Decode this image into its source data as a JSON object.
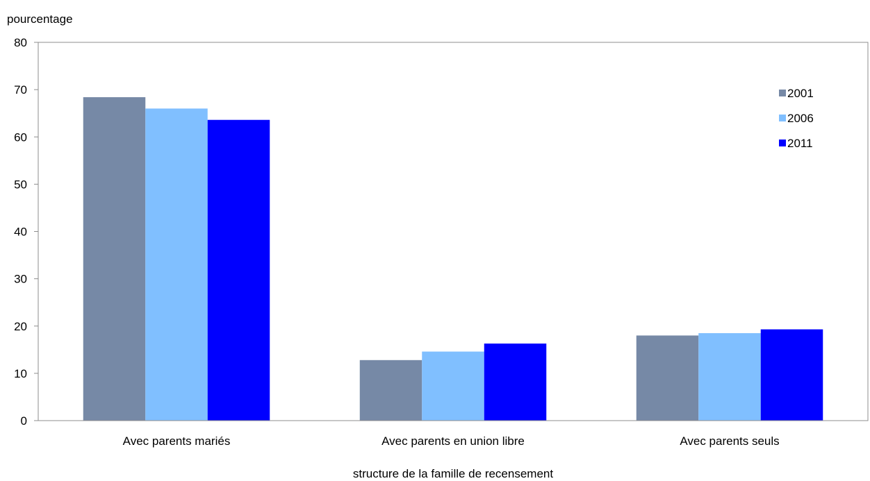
{
  "chart_data": {
    "type": "bar",
    "title": "",
    "ylabel": "pourcentage",
    "xlabel": "structure de la famille de recensement",
    "ylim": [
      0,
      80
    ],
    "yticks": [
      0,
      10,
      20,
      30,
      40,
      50,
      60,
      70,
      80
    ],
    "categories": [
      "Avec parents mariés",
      "Avec parents en union libre",
      "Avec parents seuls"
    ],
    "series": [
      {
        "name": "2001",
        "color": "#7689a6",
        "values": [
          68.4,
          12.8,
          18.0
        ]
      },
      {
        "name": "2006",
        "color": "#80bfff",
        "values": [
          66.0,
          14.6,
          18.5
        ]
      },
      {
        "name": "2011",
        "color": "#0000ff",
        "values": [
          63.6,
          16.3,
          19.3
        ]
      }
    ],
    "grid": false,
    "legend_position": "top-right"
  }
}
